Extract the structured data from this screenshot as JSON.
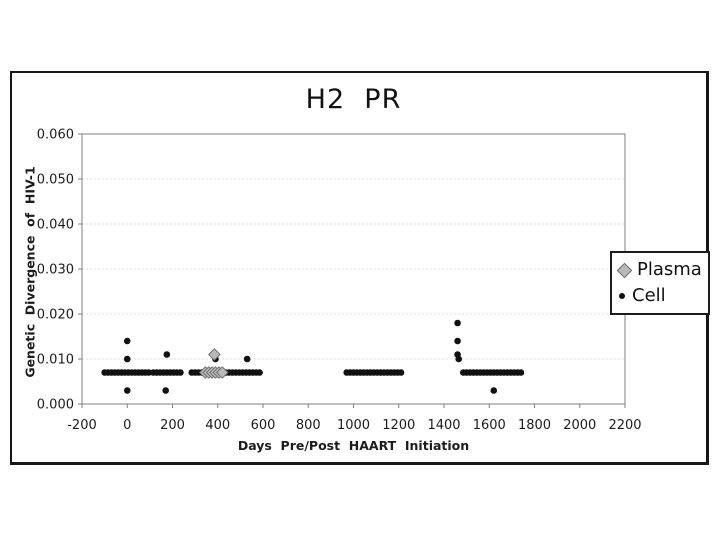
{
  "chart_data": {
    "type": "scatter",
    "title": "H2  PR",
    "xlabel": "Days  Pre/Post  HAART  Initiation",
    "ylabel": "Genetic  Divergence  of  HIV-1",
    "xlim": [
      -200,
      2200
    ],
    "ylim": [
      0.0,
      0.06
    ],
    "x_tick_values": [
      -200,
      0,
      200,
      400,
      600,
      800,
      1000,
      1200,
      1400,
      1600,
      1800,
      2000,
      2200
    ],
    "x_tick_labels": [
      "-200",
      "0",
      "200",
      "400",
      "600",
      "800",
      "1000",
      "1200",
      "1400",
      "1600",
      "1800",
      "2000",
      "2200"
    ],
    "y_tick_values": [
      0.0,
      0.01,
      0.02,
      0.03,
      0.04,
      0.05,
      0.06
    ],
    "y_tick_labels": [
      "0.000",
      "0.010",
      "0.020",
      "0.030",
      "0.040",
      "0.050",
      "0.060"
    ],
    "grid": {
      "horizontal": true,
      "style": "dashed",
      "color": "#dcdcdc"
    },
    "axis_color": "#7f7f7f",
    "legend": {
      "position": "right",
      "entries": [
        {
          "label": "Plasma",
          "marker": "diamond",
          "fill": "#b9b9b9",
          "stroke": "#6f6f6f"
        },
        {
          "label": "Cell",
          "marker": "circle",
          "fill": "#111111"
        }
      ]
    },
    "series": [
      {
        "name": "Plasma",
        "marker": "diamond",
        "fill": "#b9b9b9",
        "stroke": "#6f6f6f",
        "points": [
          [
            385,
            0.011
          ]
        ],
        "runs": [
          {
            "x_start": 345,
            "x_end": 430,
            "x_step": 15,
            "y": 0.007
          }
        ]
      },
      {
        "name": "Cell",
        "marker": "circle",
        "fill": "#111111",
        "points": [
          [
            0,
            0.014
          ],
          [
            0,
            0.01
          ],
          [
            0,
            0.003
          ],
          [
            175,
            0.011
          ],
          [
            170,
            0.003
          ],
          [
            390,
            0.01
          ],
          [
            530,
            0.01
          ],
          [
            1460,
            0.018
          ],
          [
            1460,
            0.014
          ],
          [
            1460,
            0.011
          ],
          [
            1465,
            0.01
          ],
          [
            1620,
            0.003
          ]
        ],
        "runs": [
          {
            "x_start": -100,
            "x_end": 100,
            "x_step": 15,
            "y": 0.007
          },
          {
            "x_start": 115,
            "x_end": 245,
            "x_step": 15,
            "y": 0.007
          },
          {
            "x_start": 285,
            "x_end": 595,
            "x_step": 15,
            "y": 0.007
          },
          {
            "x_start": 970,
            "x_end": 1215,
            "x_step": 15,
            "y": 0.007
          },
          {
            "x_start": 1485,
            "x_end": 1750,
            "x_step": 15,
            "y": 0.007
          }
        ]
      }
    ]
  }
}
